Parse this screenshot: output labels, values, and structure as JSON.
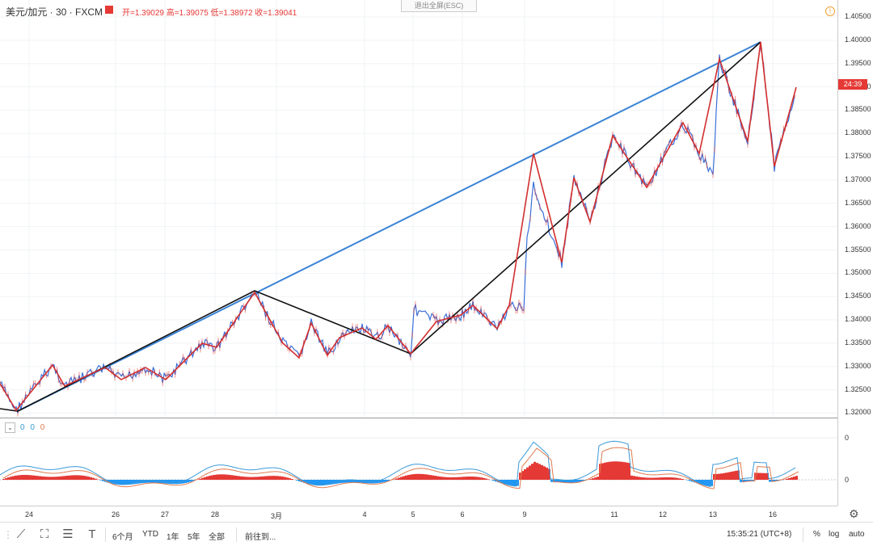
{
  "header": {
    "symbol": "美元/加元 · 30 · FXCM",
    "ohlc": "开=1.39029  高=1.39075  低=1.38972  收=1.39041",
    "exit_fullscreen": "退出全屏(ESC)"
  },
  "price_axis": {
    "ticks": [
      "1.40500",
      "1.40000",
      "1.39500",
      "1.39000",
      "1.38500",
      "1.38000",
      "1.37500",
      "1.37000",
      "1.36500",
      "1.36000",
      "1.35500",
      "1.35000",
      "1.34500",
      "1.34000",
      "1.33500",
      "1.33000",
      "1.32500",
      "1.32000"
    ],
    "current_tag": "24:39"
  },
  "indicator": {
    "legend_values": [
      "0",
      "0",
      "0"
    ],
    "axis_ticks": [
      "0",
      "0"
    ]
  },
  "time_axis": {
    "labels": [
      "24",
      "26",
      "27",
      "28",
      "3月",
      "4",
      "5",
      "6",
      "9",
      "11",
      "12",
      "13",
      "16"
    ]
  },
  "toolbar": {
    "ranges": [
      "6个月",
      "YTD",
      "1年",
      "5年",
      "全部"
    ],
    "goto": "前往到...",
    "clock": "15:35:21 (UTC+8)",
    "percent": "%",
    "log": "log",
    "auto": "auto"
  },
  "colors": {
    "up": "#e53935",
    "down": "#3a6fd8",
    "trend_blue": "#3b84d6",
    "zigzag_black": "#000000",
    "zigzag_red": "#d32f2f"
  }
}
